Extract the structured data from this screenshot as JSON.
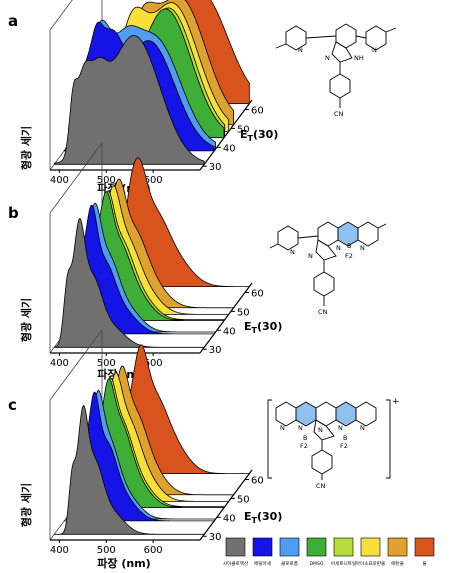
{
  "solvent_colors": [
    "#707070",
    "#1414e6",
    "#4f9cf2",
    "#3fae36",
    "#b8dc3a",
    "#f7e03a",
    "#e0a22e",
    "#d9541c"
  ],
  "legend": {
    "labels": [
      "사이클로헥산",
      "에틸아세",
      "클로로폼",
      "DMSO",
      "아세토니트릴",
      "아이소프로판올",
      "에탄올",
      "물"
    ]
  },
  "chart_data": [
    {
      "type": "line",
      "panel_label": "a",
      "xlabel": "파장 (nm)",
      "ylabel": "형광 세기",
      "zlabel": "ET(30)",
      "xlim": [
        380,
        700
      ],
      "x_ticks": [
        400,
        500,
        600
      ],
      "z_ticks": [
        30,
        40,
        50,
        60
      ],
      "series": [
        {
          "et30": 31.0,
          "peaks": [
            [
              420,
              0.25,
              8
            ],
            [
              440,
              0.32,
              14
            ],
            [
              470,
              0.3,
              20
            ],
            [
              550,
              0.7,
              55
            ]
          ]
        },
        {
          "et30": 38.1,
          "peaks": [
            [
              420,
              0.28,
              10
            ],
            [
              445,
              0.55,
              16
            ],
            [
              480,
              0.48,
              22
            ],
            [
              560,
              0.7,
              55
            ]
          ]
        },
        {
          "et30": 39.1,
          "peaks": [
            [
              450,
              0.55,
              22
            ],
            [
              500,
              0.35,
              30
            ],
            [
              570,
              0.62,
              55
            ]
          ]
        },
        {
          "et30": 45.1,
          "peaks": [
            [
              470,
              0.35,
              25
            ],
            [
              575,
              0.6,
              55
            ]
          ]
        },
        {
          "et30": 45.6,
          "peaks": [
            [
              480,
              0.35,
              25
            ],
            [
              580,
              0.58,
              55
            ]
          ]
        },
        {
          "et30": 48.4,
          "peaks": [
            [
              490,
              0.38,
              30
            ],
            [
              580,
              0.58,
              55
            ]
          ]
        },
        {
          "et30": 51.9,
          "peaks": [
            [
              500,
              0.35,
              30
            ],
            [
              585,
              0.6,
              55
            ]
          ]
        },
        {
          "et30": 63.1,
          "peaks": [
            [
              540,
              0.3,
              30
            ],
            [
              600,
              0.55,
              55
            ]
          ]
        }
      ]
    },
    {
      "type": "line",
      "panel_label": "b",
      "xlabel": "파장 (nm)",
      "ylabel": "형광 세기",
      "zlabel": "ET(30)",
      "xlim": [
        380,
        700
      ],
      "x_ticks": [
        400,
        500,
        600
      ],
      "z_ticks": [
        30,
        40,
        50,
        60
      ],
      "series": [
        {
          "et30": 31.0,
          "peaks": [
            [
              408,
              0.55,
              8
            ],
            [
              432,
              1.0,
              12
            ],
            [
              460,
              0.6,
              20
            ],
            [
              500,
              0.2,
              30
            ]
          ]
        },
        {
          "et30": 38.1,
          "peaks": [
            [
              412,
              0.45,
              9
            ],
            [
              436,
              0.9,
              13
            ],
            [
              465,
              0.55,
              22
            ],
            [
              505,
              0.2,
              30
            ]
          ]
        },
        {
          "et30": 39.1,
          "peaks": [
            [
              415,
              0.35,
              10
            ],
            [
              440,
              0.85,
              14
            ],
            [
              470,
              0.55,
              22
            ],
            [
              510,
              0.2,
              30
            ]
          ]
        },
        {
          "et30": 45.1,
          "peaks": [
            [
              420,
              0.3,
              10
            ],
            [
              445,
              0.8,
              15
            ],
            [
              475,
              0.55,
              24
            ],
            [
              515,
              0.2,
              30
            ]
          ]
        },
        {
          "et30": 45.6,
          "peaks": [
            [
              420,
              0.3,
              10
            ],
            [
              447,
              0.8,
              15
            ],
            [
              478,
              0.55,
              24
            ],
            [
              518,
              0.2,
              30
            ]
          ]
        },
        {
          "et30": 48.4,
          "peaks": [
            [
              425,
              0.3,
              10
            ],
            [
              450,
              0.8,
              16
            ],
            [
              480,
              0.55,
              26
            ],
            [
              520,
              0.2,
              32
            ]
          ]
        },
        {
          "et30": 51.9,
          "peaks": [
            [
              428,
              0.3,
              11
            ],
            [
              452,
              0.8,
              16
            ],
            [
              485,
              0.55,
              26
            ],
            [
              525,
              0.2,
              32
            ]
          ]
        },
        {
          "et30": 63.1,
          "peaks": [
            [
              440,
              0.25,
              12
            ],
            [
              460,
              0.85,
              18
            ],
            [
              495,
              0.55,
              28
            ],
            [
              540,
              0.25,
              35
            ]
          ]
        }
      ]
    },
    {
      "type": "line",
      "panel_label": "c",
      "xlabel": "파장 (nm)",
      "ylabel": "형광 세기",
      "zlabel": "ET(30)",
      "xlim": [
        380,
        700
      ],
      "x_ticks": [
        400,
        500,
        600
      ],
      "z_ticks": [
        30,
        40,
        50,
        60
      ],
      "series": [
        {
          "et30": 31.0,
          "peaks": [
            [
              418,
              0.45,
              7
            ],
            [
              440,
              0.9,
              11
            ],
            [
              465,
              0.55,
              18
            ],
            [
              500,
              0.2,
              28
            ]
          ]
        },
        {
          "et30": 38.1,
          "peaks": [
            [
              420,
              0.4,
              8
            ],
            [
              442,
              0.85,
              12
            ],
            [
              470,
              0.55,
              20
            ],
            [
              505,
              0.2,
              28
            ]
          ]
        },
        {
          "et30": 39.1,
          "peaks": [
            [
              422,
              0.35,
              8
            ],
            [
              446,
              0.8,
              13
            ],
            [
              472,
              0.55,
              20
            ],
            [
              508,
              0.2,
              28
            ]
          ]
        },
        {
          "et30": 45.1,
          "peaks": [
            [
              425,
              0.3,
              9
            ],
            [
              450,
              0.75,
              14
            ],
            [
              478,
              0.55,
              22
            ],
            [
              512,
              0.2,
              30
            ]
          ]
        },
        {
          "et30": 45.6,
          "peaks": [
            [
              427,
              0.3,
              9
            ],
            [
              452,
              0.75,
              14
            ],
            [
              480,
              0.55,
              22
            ],
            [
              515,
              0.2,
              30
            ]
          ]
        },
        {
          "et30": 48.4,
          "peaks": [
            [
              430,
              0.3,
              10
            ],
            [
              455,
              0.75,
              15
            ],
            [
              484,
              0.55,
              24
            ],
            [
              520,
              0.2,
              30
            ]
          ]
        },
        {
          "et30": 51.9,
          "peaks": [
            [
              432,
              0.3,
              10
            ],
            [
              458,
              0.75,
              15
            ],
            [
              488,
              0.55,
              24
            ],
            [
              524,
              0.2,
              30
            ]
          ]
        },
        {
          "et30": 63.1,
          "peaks": [
            [
              440,
              0.25,
              11
            ],
            [
              465,
              0.8,
              16
            ],
            [
              495,
              0.55,
              26
            ],
            [
              535,
              0.25,
              32
            ]
          ]
        }
      ]
    }
  ],
  "structures": {
    "atoms_a": [
      "N",
      "N",
      "N",
      "NH",
      "CN"
    ],
    "atoms_b": [
      "N",
      "N",
      "N",
      "N",
      "B",
      "F2",
      "CN"
    ],
    "atoms_c": [
      "N",
      "N",
      "N",
      "N",
      "N",
      "B",
      "F2",
      "B",
      "F2",
      "CN"
    ],
    "charge_c": "+"
  }
}
